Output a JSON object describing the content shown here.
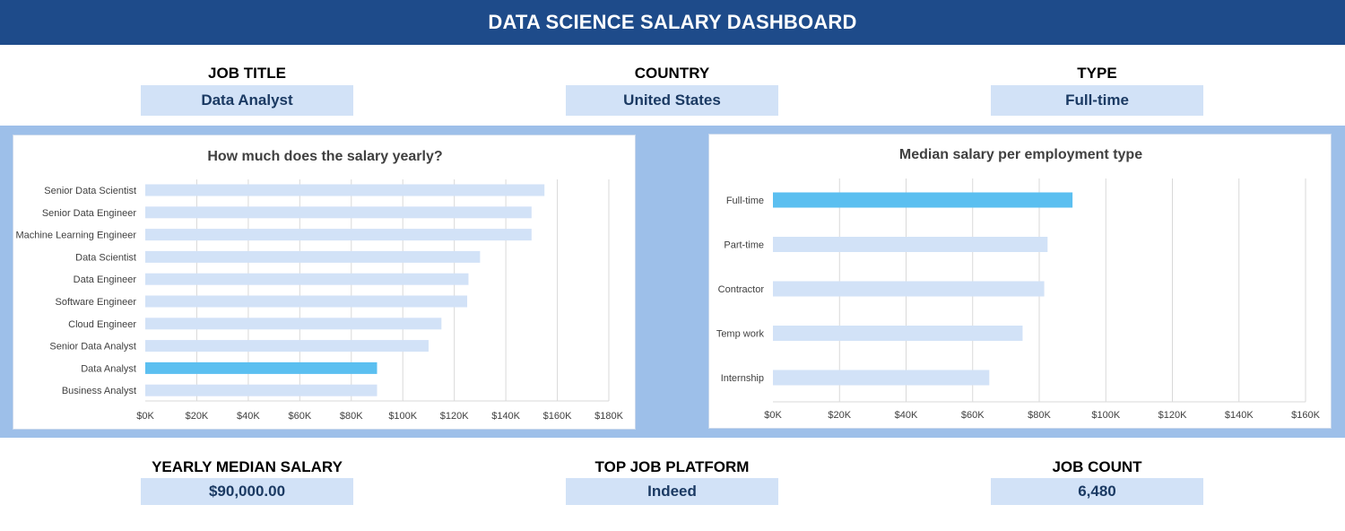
{
  "header": {
    "title": "DATA SCIENCE SALARY DASHBOARD"
  },
  "filters": [
    {
      "label": "JOB TITLE",
      "value": "Data Analyst"
    },
    {
      "label": "COUNTRY",
      "value": "United States"
    },
    {
      "label": "TYPE",
      "value": "Full-time"
    }
  ],
  "kpis": [
    {
      "label": "YEARLY MEDIAN SALARY",
      "value": "$90,000.00"
    },
    {
      "label": "TOP JOB PLATFORM",
      "value": "Indeed"
    },
    {
      "label": "JOB COUNT",
      "value": "6,480"
    }
  ],
  "colors": {
    "header": "#1e4b8a",
    "band": "#9dbfe9",
    "bar": "#d2e2f7",
    "highlight": "#5bbff0",
    "filter_box": "#d2e2f7"
  },
  "chart_data": [
    {
      "type": "bar",
      "orientation": "horizontal",
      "title": "How much does the salary yearly?",
      "categories": [
        "Senior Data Scientist",
        "Senior Data Engineer",
        "Machine Learning Engineer",
        "Data Scientist",
        "Data Engineer",
        "Software Engineer",
        "Cloud Engineer",
        "Senior Data Analyst",
        "Data Analyst",
        "Business Analyst"
      ],
      "values": [
        155000,
        150000,
        150000,
        130000,
        125500,
        125000,
        115000,
        110000,
        90000,
        90000
      ],
      "highlight": "Data Analyst",
      "xlim": [
        0,
        180000
      ],
      "xticks": [
        0,
        20000,
        40000,
        60000,
        80000,
        100000,
        120000,
        140000,
        160000,
        180000
      ],
      "xtick_labels": [
        "$0K",
        "$20K",
        "$40K",
        "$60K",
        "$80K",
        "$100K",
        "$120K",
        "$140K",
        "$160K",
        "$180K"
      ],
      "grid": true
    },
    {
      "type": "bar",
      "orientation": "horizontal",
      "title": "Median salary per employment type",
      "categories": [
        "Full-time",
        "Part-time",
        "Contractor",
        "Temp work",
        "Internship"
      ],
      "values": [
        90000,
        82500,
        81500,
        75000,
        65000
      ],
      "highlight": "Full-time",
      "xlim": [
        0,
        160000
      ],
      "xticks": [
        0,
        20000,
        40000,
        60000,
        80000,
        100000,
        120000,
        140000,
        160000
      ],
      "xtick_labels": [
        "$0K",
        "$20K",
        "$40K",
        "$60K",
        "$80K",
        "$100K",
        "$120K",
        "$140K",
        "$160K"
      ],
      "grid": true
    }
  ]
}
